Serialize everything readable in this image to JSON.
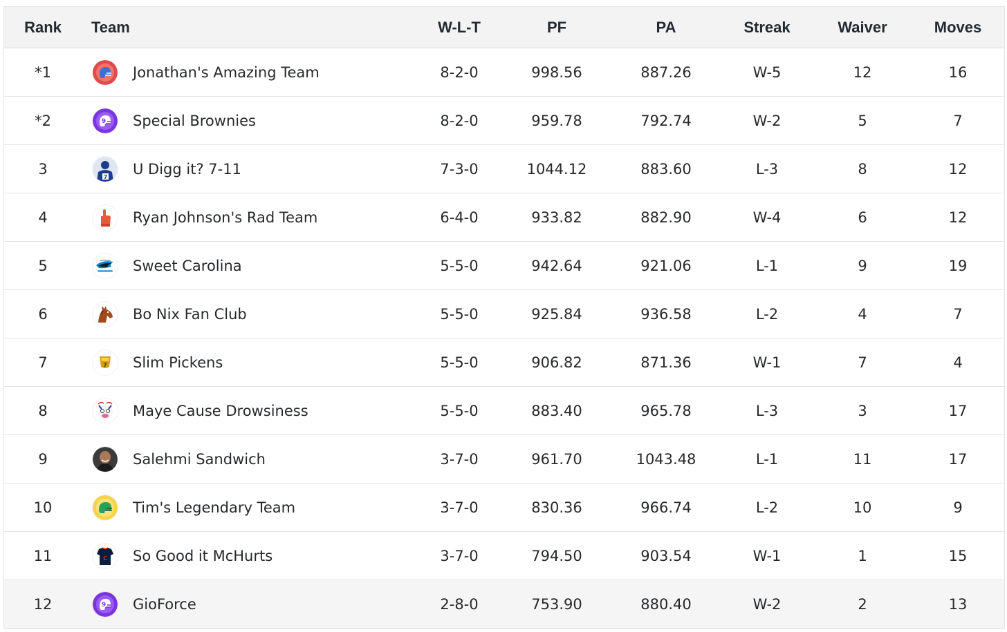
{
  "headers": {
    "rank": "Rank",
    "team": "Team",
    "wlt": "W-L-T",
    "pf": "PF",
    "pa": "PA",
    "streak": "Streak",
    "waiver": "Waiver",
    "moves": "Moves"
  },
  "rows": [
    {
      "rank": "*1",
      "team": "Jonathan's Amazing Team",
      "logo": "red-helmet-icon",
      "wlt": "8-2-0",
      "pf": "998.56",
      "pa": "887.26",
      "streak": "W-5",
      "waiver": "12",
      "moves": "16"
    },
    {
      "rank": "*2",
      "team": "Special Brownies",
      "logo": "purple-helmet-icon",
      "wlt": "8-2-0",
      "pf": "959.78",
      "pa": "792.74",
      "streak": "W-2",
      "waiver": "5",
      "moves": "7"
    },
    {
      "rank": "3",
      "team": "U Digg it? 7-11",
      "logo": "player-jersey-icon",
      "wlt": "7-3-0",
      "pf": "1044.12",
      "pa": "883.60",
      "streak": "L-3",
      "waiver": "8",
      "moves": "12"
    },
    {
      "rank": "4",
      "team": "Ryan Johnson's Rad Team",
      "logo": "foam-finger-icon",
      "wlt": "6-4-0",
      "pf": "933.82",
      "pa": "882.90",
      "streak": "W-4",
      "waiver": "6",
      "moves": "12"
    },
    {
      "rank": "5",
      "team": "Sweet Carolina",
      "logo": "panther-icon",
      "wlt": "5-5-0",
      "pf": "942.64",
      "pa": "921.06",
      "streak": "L-1",
      "waiver": "9",
      "moves": "19"
    },
    {
      "rank": "6",
      "team": "Bo Nix Fan Club",
      "logo": "horse-icon",
      "wlt": "5-5-0",
      "pf": "925.84",
      "pa": "936.58",
      "streak": "L-2",
      "waiver": "4",
      "moves": "7"
    },
    {
      "rank": "7",
      "team": "Slim Pickens",
      "logo": "trophy-cup-icon",
      "wlt": "5-5-0",
      "pf": "906.82",
      "pa": "871.36",
      "streak": "W-1",
      "waiver": "7",
      "moves": "4"
    },
    {
      "rank": "8",
      "team": "Maye Cause Drowsiness",
      "logo": "cartoon-face-icon",
      "wlt": "5-5-0",
      "pf": "883.40",
      "pa": "965.78",
      "streak": "L-3",
      "waiver": "3",
      "moves": "17"
    },
    {
      "rank": "9",
      "team": "Salehmi Sandwich",
      "logo": "person-photo-icon",
      "wlt": "3-7-0",
      "pf": "961.70",
      "pa": "1043.48",
      "streak": "L-1",
      "waiver": "11",
      "moves": "17"
    },
    {
      "rank": "10",
      "team": "Tim's Legendary Team",
      "logo": "green-helmet-icon",
      "wlt": "3-7-0",
      "pf": "830.36",
      "pa": "966.74",
      "streak": "L-2",
      "waiver": "10",
      "moves": "9"
    },
    {
      "rank": "11",
      "team": "So Good it McHurts",
      "logo": "navy-jersey-icon",
      "wlt": "3-7-0",
      "pf": "794.50",
      "pa": "903.54",
      "streak": "W-1",
      "waiver": "1",
      "moves": "15"
    },
    {
      "rank": "12",
      "team": "GioForce",
      "logo": "purple-helmet-icon",
      "wlt": "2-8-0",
      "pf": "753.90",
      "pa": "880.40",
      "streak": "W-2",
      "waiver": "2",
      "moves": "13"
    }
  ],
  "colors": {
    "header_bg": "#f3f3f4",
    "row_border": "#e3e4e6",
    "last_row_bg": "#f5f5f6",
    "text": "#26282a"
  }
}
